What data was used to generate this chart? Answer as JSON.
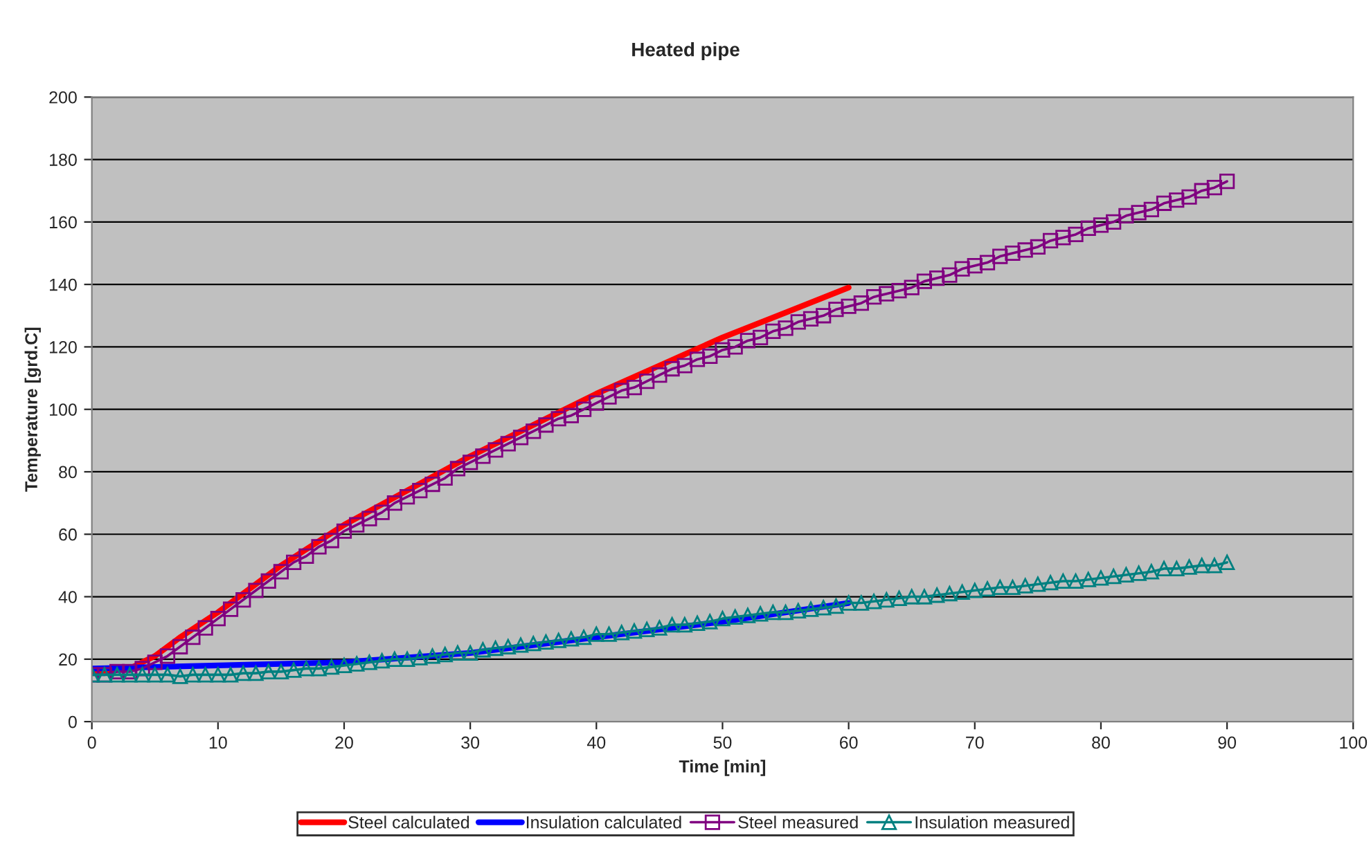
{
  "chart_data": {
    "type": "line",
    "title": "Heated pipe",
    "xlabel": "Time [min]",
    "ylabel": "Temperature [grd.C]",
    "xlim": [
      0,
      100
    ],
    "xticks": [
      0,
      10,
      20,
      30,
      40,
      50,
      60,
      70,
      80,
      90,
      100
    ],
    "ylim": [
      0,
      200
    ],
    "yticks": [
      0,
      20,
      40,
      60,
      80,
      100,
      120,
      140,
      160,
      180,
      200
    ],
    "grid": "y",
    "legend": "bottom",
    "line_style": "solid",
    "series": [
      {
        "name": "Steel calculated",
        "color": "#ff0000",
        "marker": "none",
        "x": [
          0,
          3,
          5,
          7,
          10,
          15,
          20,
          25,
          30,
          35,
          40,
          45,
          50,
          55,
          60
        ],
        "values": [
          16,
          17,
          21,
          27,
          35,
          50,
          63,
          74,
          85,
          95,
          105,
          114,
          123,
          131,
          139
        ]
      },
      {
        "name": "Insulation calculated",
        "color": "#0000ff",
        "marker": "none",
        "x": [
          0,
          10,
          20,
          30,
          40,
          50,
          60
        ],
        "values": [
          17,
          18,
          19,
          22,
          27,
          32,
          38
        ]
      },
      {
        "name": "Steel measured",
        "color": "#800080",
        "marker": "square",
        "x": [
          0,
          1,
          2,
          3,
          4,
          5,
          6,
          7,
          8,
          9,
          10,
          11,
          12,
          13,
          14,
          15,
          16,
          17,
          18,
          19,
          20,
          21,
          22,
          23,
          24,
          25,
          26,
          27,
          28,
          29,
          30,
          31,
          32,
          33,
          34,
          35,
          36,
          37,
          38,
          39,
          40,
          41,
          42,
          43,
          44,
          45,
          46,
          47,
          48,
          49,
          50,
          51,
          52,
          53,
          54,
          55,
          56,
          57,
          58,
          59,
          60,
          61,
          62,
          63,
          64,
          65,
          66,
          67,
          68,
          69,
          70,
          71,
          72,
          73,
          74,
          75,
          76,
          77,
          78,
          79,
          80,
          81,
          82,
          83,
          84,
          85,
          86,
          87,
          88,
          89,
          90
        ],
        "values": [
          15,
          15,
          16,
          16,
          17,
          19,
          21,
          24,
          27,
          30,
          33,
          36,
          39,
          42,
          45,
          48,
          51,
          53,
          56,
          58,
          61,
          63,
          65,
          67,
          70,
          72,
          74,
          76,
          78,
          81,
          83,
          85,
          87,
          89,
          91,
          93,
          95,
          97,
          98,
          100,
          102,
          104,
          106,
          107,
          109,
          111,
          113,
          114,
          116,
          117,
          119,
          120,
          122,
          123,
          125,
          126,
          128,
          129,
          130,
          132,
          133,
          134,
          136,
          137,
          138,
          139,
          141,
          142,
          143,
          145,
          146,
          147,
          149,
          150,
          151,
          152,
          154,
          155,
          156,
          158,
          159,
          160,
          162,
          163,
          164,
          166,
          167,
          168,
          170,
          171,
          173
        ]
      },
      {
        "name": "Insulation measured",
        "color": "#008080",
        "marker": "triangle",
        "x": [
          0,
          1,
          2,
          3,
          4,
          5,
          6,
          7,
          8,
          9,
          10,
          11,
          12,
          13,
          14,
          15,
          16,
          17,
          18,
          19,
          20,
          21,
          22,
          23,
          24,
          25,
          26,
          27,
          28,
          29,
          30,
          31,
          32,
          33,
          34,
          35,
          36,
          37,
          38,
          39,
          40,
          41,
          42,
          43,
          44,
          45,
          46,
          47,
          48,
          49,
          50,
          51,
          52,
          53,
          54,
          55,
          56,
          57,
          58,
          59,
          60,
          61,
          62,
          63,
          64,
          65,
          66,
          67,
          68,
          69,
          70,
          71,
          72,
          73,
          74,
          75,
          76,
          77,
          78,
          79,
          80,
          81,
          82,
          83,
          84,
          85,
          86,
          87,
          88,
          89,
          90
        ],
        "values": [
          15,
          15,
          15,
          15,
          15,
          15,
          15,
          14.5,
          15,
          15,
          15,
          15,
          15.5,
          15.5,
          16,
          16,
          16.5,
          17,
          17,
          17.5,
          18,
          18.5,
          19,
          19.5,
          20,
          20,
          20.5,
          21,
          21.5,
          22,
          22,
          23,
          23.5,
          24,
          24.5,
          25,
          25.5,
          26,
          26.5,
          27,
          28,
          28,
          28.5,
          29,
          29.5,
          30,
          31,
          31,
          31.5,
          32,
          33,
          33.5,
          34,
          34.5,
          35,
          35,
          35.5,
          36,
          36.5,
          37,
          38,
          38,
          38.5,
          39,
          39.5,
          40,
          40,
          40.5,
          41,
          41.5,
          42,
          42.5,
          43,
          43,
          43.5,
          44,
          44.5,
          45,
          45,
          45.5,
          46,
          46.5,
          47,
          47.5,
          48,
          49,
          49,
          49.5,
          50,
          50,
          51
        ]
      }
    ]
  }
}
